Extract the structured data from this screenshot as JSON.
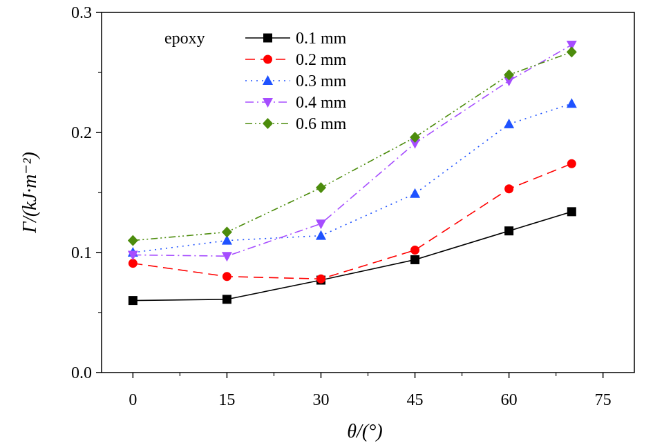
{
  "chart_data": {
    "type": "line",
    "title": "",
    "xlabel": "θ/(°)",
    "ylabel": "Γ/(kJ·m⁻²)",
    "xlim": [
      -5,
      80
    ],
    "ylim": [
      0.0,
      0.3
    ],
    "x_ticks": [
      "0",
      "15",
      "30",
      "45",
      "60",
      "75"
    ],
    "y_ticks": [
      "0.0",
      "0.1",
      "0.2",
      "0.3"
    ],
    "annotation": "epoxy",
    "legend_position": "top-center",
    "grid": false,
    "x": [
      0,
      15,
      30,
      45,
      60,
      70
    ],
    "series": [
      {
        "name": "0.1 mm",
        "values": [
          0.06,
          0.061,
          0.077,
          0.094,
          0.118,
          0.134
        ],
        "color": "#000000",
        "marker": "square",
        "dash": "solid"
      },
      {
        "name": "0.2 mm",
        "values": [
          0.091,
          0.08,
          0.078,
          0.102,
          0.153,
          0.174
        ],
        "color": "#ff0000",
        "marker": "circle",
        "dash": "dashed"
      },
      {
        "name": "0.3 mm",
        "values": [
          0.1,
          0.11,
          0.114,
          0.149,
          0.207,
          0.224
        ],
        "color": "#1f52ff",
        "marker": "triangle-up",
        "dash": "dotted"
      },
      {
        "name": "0.4 mm",
        "values": [
          0.098,
          0.097,
          0.124,
          0.191,
          0.243,
          0.273
        ],
        "color": "#a64dff",
        "marker": "triangle-down",
        "dash": "dash-dot"
      },
      {
        "name": "0.6 mm",
        "values": [
          0.11,
          0.117,
          0.154,
          0.196,
          0.248,
          0.267
        ],
        "color": "#4c8c0c",
        "marker": "diamond",
        "dash": "dash-dot-dot"
      }
    ]
  }
}
